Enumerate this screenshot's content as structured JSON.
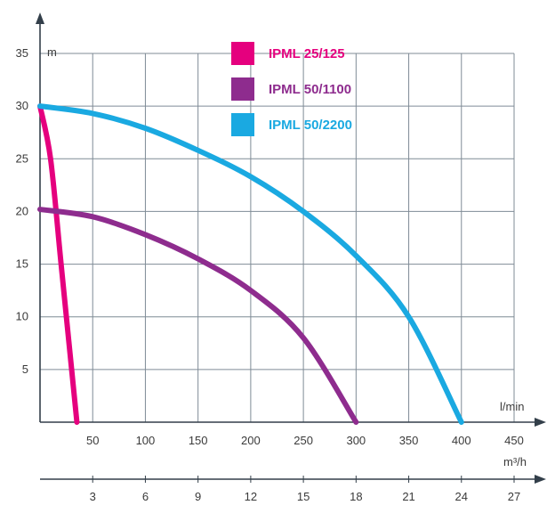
{
  "chart_data": {
    "type": "line",
    "y_unit": "m",
    "x_unit": "l/min",
    "x2_unit": "m³/h",
    "xlim": [
      0,
      450
    ],
    "ylim": [
      0,
      35
    ],
    "x_ticks": [
      50,
      100,
      150,
      200,
      250,
      300,
      350,
      400,
      450
    ],
    "x2_ticks": [
      3,
      6,
      9,
      12,
      15,
      18,
      21,
      24,
      27
    ],
    "y_ticks": [
      5,
      10,
      15,
      20,
      25,
      30,
      35
    ],
    "grid": true,
    "legend_position": "top-center",
    "series": [
      {
        "name": "IPML 25/125",
        "color": "#e5007e",
        "x": [
          0,
          10,
          20,
          30,
          35
        ],
        "y": [
          30,
          25,
          15,
          5,
          0
        ]
      },
      {
        "name": "IPML 50/1100",
        "color": "#8e2c8e",
        "x": [
          0,
          50,
          100,
          150,
          200,
          250,
          300
        ],
        "y": [
          20.2,
          19.5,
          17.8,
          15.5,
          12.5,
          8,
          0
        ]
      },
      {
        "name": "IPML 50/2200",
        "color": "#1aa9e1",
        "x": [
          0,
          50,
          100,
          150,
          200,
          250,
          300,
          350,
          400
        ],
        "y": [
          30,
          29.3,
          27.9,
          25.8,
          23.3,
          20,
          15.8,
          10,
          0
        ]
      }
    ]
  }
}
